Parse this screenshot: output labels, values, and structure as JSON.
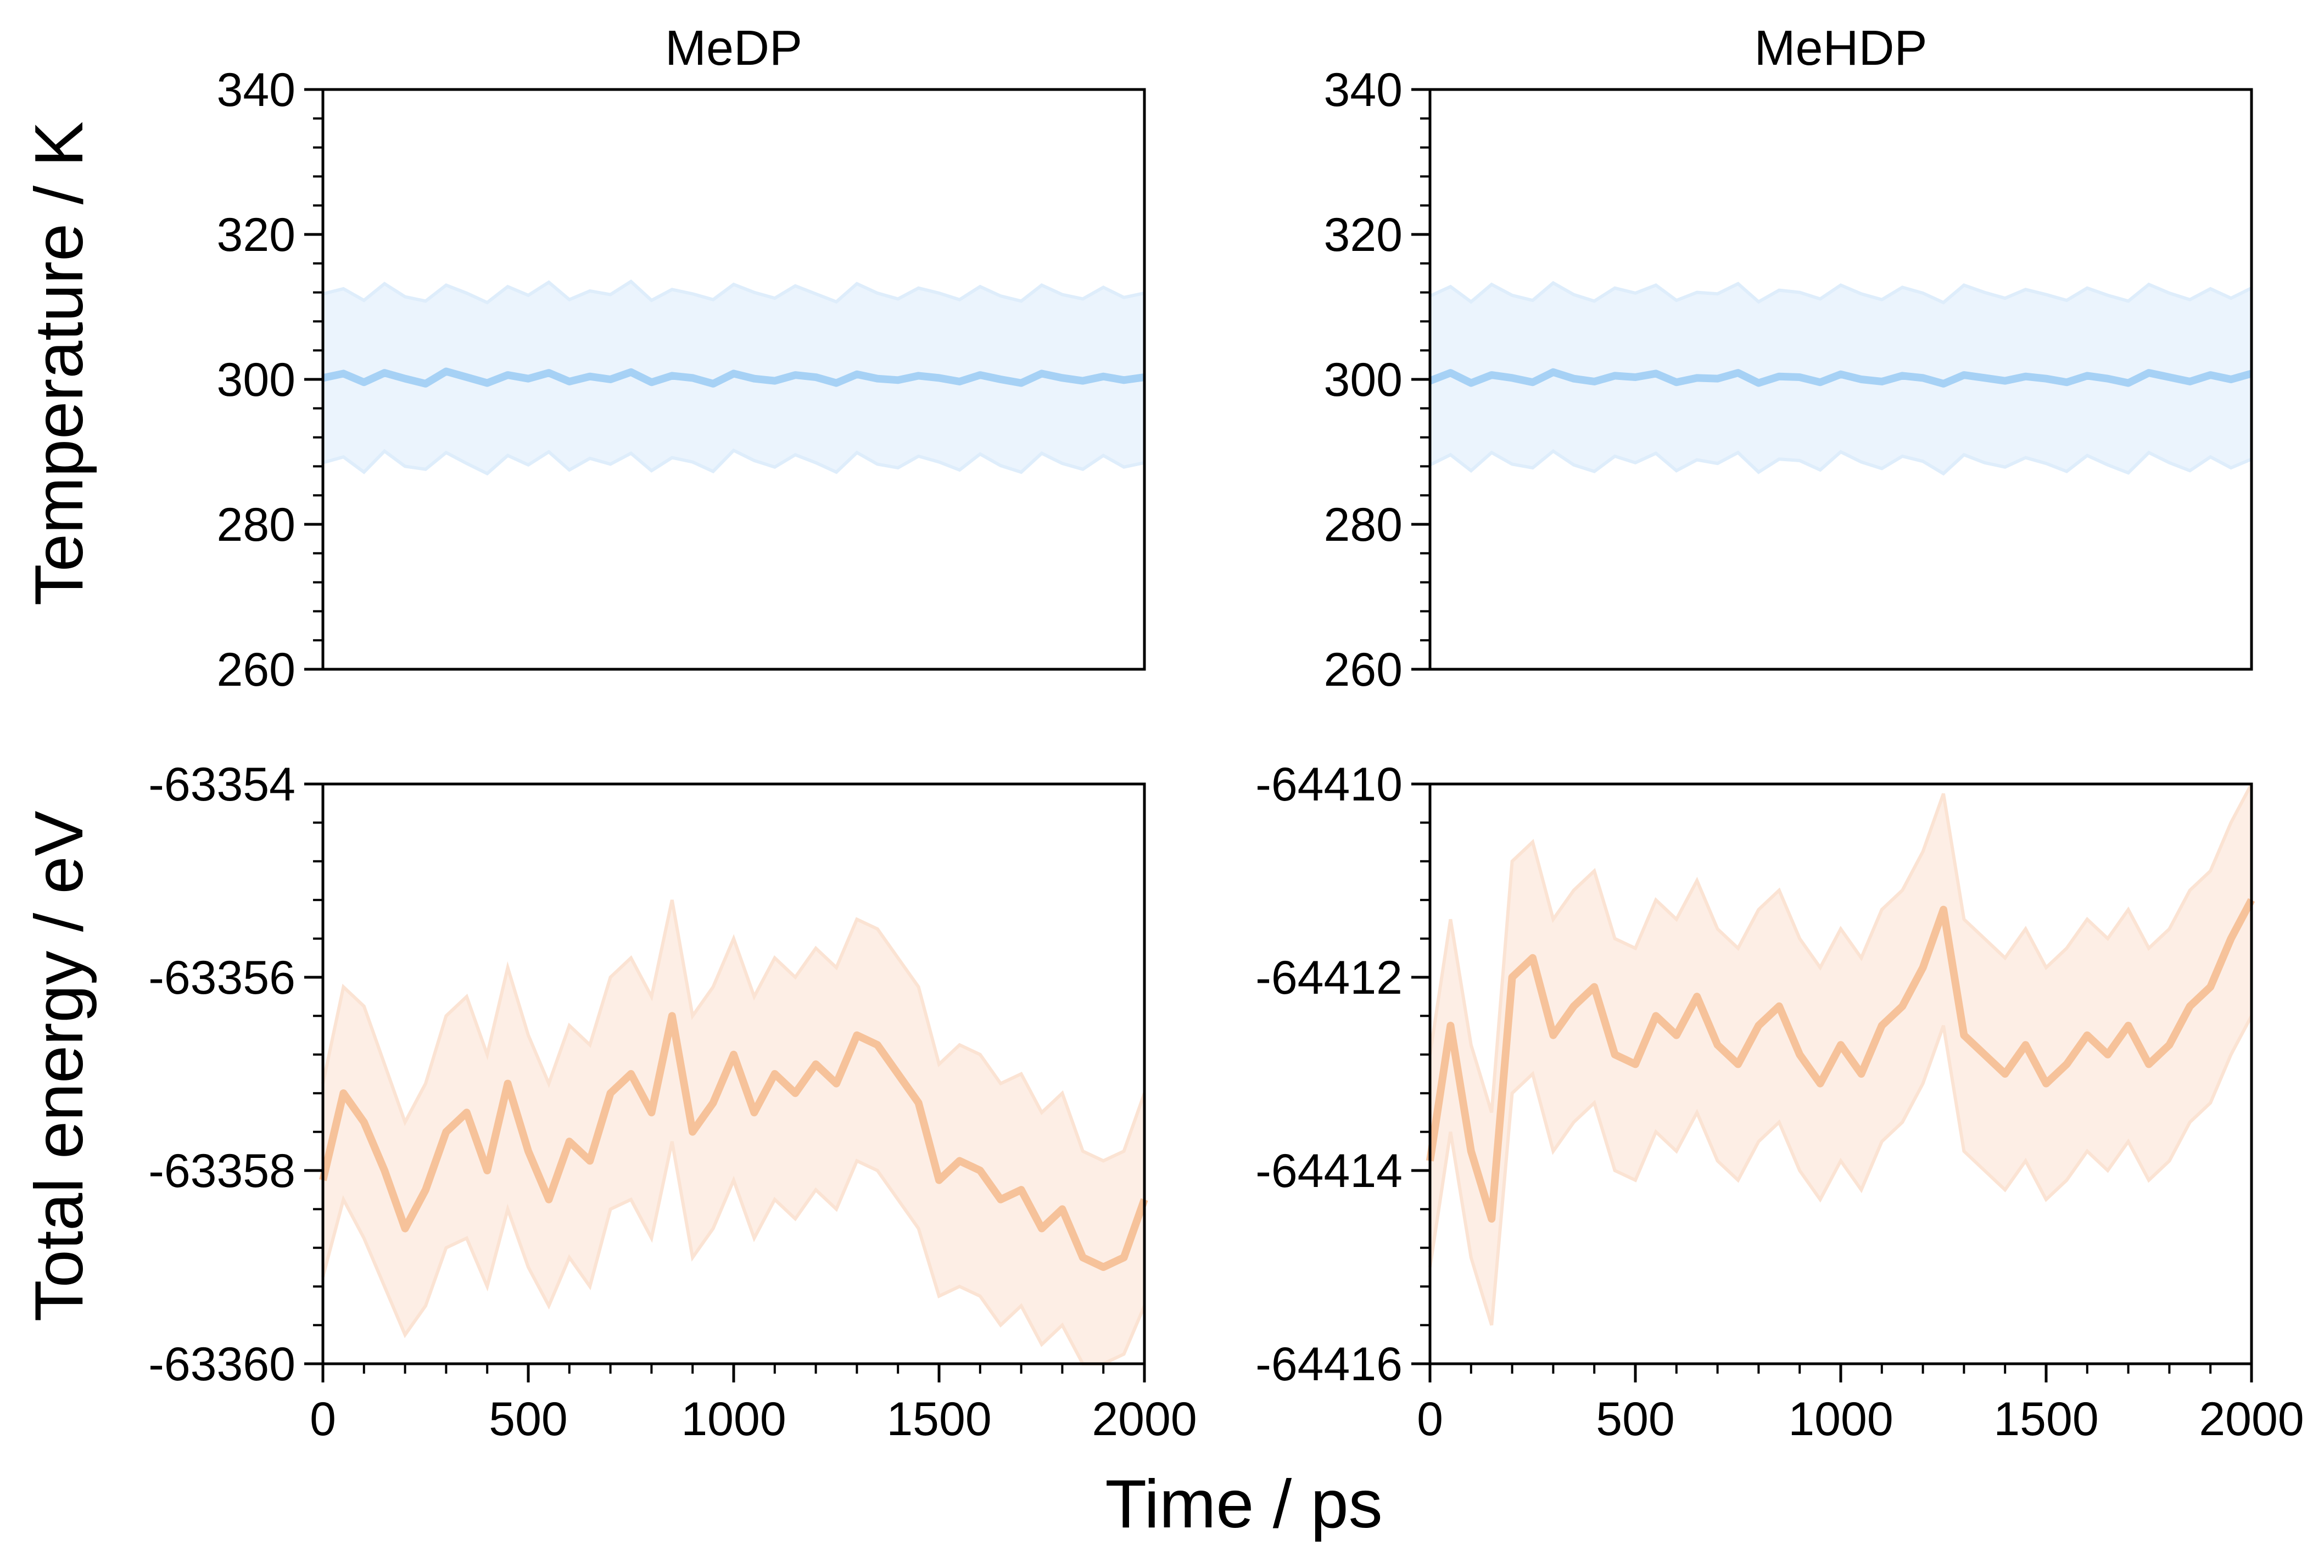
{
  "figure": {
    "xlabel": "Time / ps",
    "colors": {
      "temperature_line": "#a6d1f5",
      "temperature_band": "#deedfb",
      "energy_line": "#f6c29a",
      "energy_band": "#fbe3d3"
    }
  },
  "chart_data": [
    {
      "id": "temp-medp",
      "type": "line",
      "title": "MeDP",
      "xlabel": "",
      "ylabel": "Temperature / K",
      "xlim": [
        0,
        2000
      ],
      "ylim": [
        260,
        340
      ],
      "xticks": [
        0,
        500,
        1000,
        1500,
        2000
      ],
      "yticks": [
        260,
        280,
        300,
        320,
        340
      ],
      "ytick_labels": [
        "260",
        "280",
        "300",
        "320",
        "340"
      ],
      "show_xticklabels": false,
      "color": "#a6d1f5",
      "band_color": "#deedfb",
      "series": [
        {
          "x": [
            0,
            50,
            100,
            150,
            200,
            250,
            300,
            350,
            400,
            450,
            500,
            550,
            600,
            650,
            700,
            750,
            800,
            850,
            900,
            950,
            1000,
            1050,
            1100,
            1150,
            1200,
            1250,
            1300,
            1350,
            1400,
            1450,
            1500,
            1550,
            1600,
            1650,
            1700,
            1750,
            1800,
            1850,
            1900,
            1950,
            2000
          ],
          "mean": [
            300.2,
            300.8,
            299.6,
            300.9,
            300.1,
            299.4,
            301.1,
            300.3,
            299.5,
            300.6,
            300.1,
            300.9,
            299.7,
            300.4,
            300.0,
            301.0,
            299.6,
            300.5,
            300.2,
            299.4,
            300.8,
            300.1,
            299.8,
            300.6,
            300.3,
            299.5,
            300.7,
            300.1,
            299.9,
            300.5,
            300.2,
            299.7,
            300.6,
            300.0,
            299.5,
            300.8,
            300.2,
            299.8,
            300.4,
            299.9,
            300.3
          ],
          "lower": [
            288.5,
            289.3,
            287.2,
            290.1,
            288.0,
            287.6,
            289.9,
            288.4,
            287.0,
            289.5,
            288.2,
            290.0,
            287.5,
            289.1,
            288.3,
            289.8,
            287.4,
            289.2,
            288.6,
            287.3,
            290.2,
            288.8,
            287.9,
            289.6,
            288.5,
            287.2,
            289.9,
            288.3,
            287.8,
            289.4,
            288.6,
            287.5,
            289.7,
            288.1,
            287.2,
            289.8,
            288.4,
            287.6,
            289.5,
            287.9,
            288.5
          ],
          "upper": [
            311.8,
            312.5,
            310.9,
            313.2,
            311.4,
            310.8,
            313.0,
            311.9,
            310.6,
            312.8,
            311.6,
            313.4,
            311.0,
            312.2,
            311.7,
            313.5,
            310.9,
            312.4,
            311.8,
            311.0,
            313.1,
            312.0,
            311.2,
            312.9,
            311.8,
            310.7,
            313.2,
            311.9,
            311.1,
            312.6,
            311.9,
            311.0,
            312.8,
            311.5,
            310.8,
            313.0,
            311.7,
            311.1,
            312.7,
            311.3,
            311.9
          ]
        }
      ]
    },
    {
      "id": "temp-mehdp",
      "type": "line",
      "title": "MeHDP",
      "xlabel": "",
      "ylabel": "",
      "xlim": [
        0,
        2000
      ],
      "ylim": [
        260,
        340
      ],
      "xticks": [
        0,
        500,
        1000,
        1500,
        2000
      ],
      "yticks": [
        260,
        280,
        300,
        320,
        340
      ],
      "ytick_labels": [
        "260",
        "280",
        "300",
        "320",
        "340"
      ],
      "show_xticklabels": false,
      "color": "#a6d1f5",
      "band_color": "#deedfb",
      "series": [
        {
          "x": [
            0,
            50,
            100,
            150,
            200,
            250,
            300,
            350,
            400,
            450,
            500,
            550,
            600,
            650,
            700,
            750,
            800,
            850,
            900,
            950,
            1000,
            1050,
            1100,
            1150,
            1200,
            1250,
            1300,
            1350,
            1400,
            1450,
            1500,
            1550,
            1600,
            1650,
            1700,
            1750,
            1800,
            1850,
            1900,
            1950,
            2000
          ],
          "mean": [
            299.8,
            300.9,
            299.5,
            300.6,
            300.2,
            299.6,
            301.0,
            300.1,
            299.7,
            300.5,
            300.3,
            300.8,
            299.6,
            300.2,
            300.1,
            300.9,
            299.5,
            300.4,
            300.3,
            299.6,
            300.7,
            300.0,
            299.7,
            300.5,
            300.2,
            299.4,
            300.6,
            300.2,
            299.8,
            300.4,
            300.1,
            299.6,
            300.5,
            300.1,
            299.5,
            300.9,
            300.3,
            299.7,
            300.6,
            300.0,
            300.8
          ],
          "lower": [
            288.2,
            289.6,
            287.4,
            289.9,
            288.3,
            287.8,
            290.1,
            288.2,
            287.3,
            289.4,
            288.5,
            289.8,
            287.4,
            288.9,
            288.4,
            289.9,
            287.2,
            289.0,
            288.8,
            287.5,
            290.0,
            288.6,
            287.7,
            289.4,
            288.7,
            287.0,
            289.6,
            288.5,
            287.9,
            289.2,
            288.4,
            287.3,
            289.5,
            288.2,
            287.1,
            289.9,
            288.5,
            287.4,
            289.3,
            287.8,
            289.0
          ],
          "upper": [
            311.5,
            312.8,
            310.7,
            313.1,
            311.6,
            310.9,
            313.3,
            311.7,
            310.8,
            312.6,
            311.9,
            313.0,
            310.9,
            312.0,
            311.8,
            313.2,
            310.7,
            312.3,
            312.0,
            311.1,
            313.0,
            311.8,
            311.0,
            312.7,
            311.9,
            310.6,
            313.0,
            312.0,
            311.2,
            312.4,
            311.7,
            310.9,
            312.6,
            311.6,
            310.8,
            313.1,
            311.9,
            311.0,
            312.5,
            311.2,
            312.6
          ]
        }
      ]
    },
    {
      "id": "energy-medp",
      "type": "line",
      "title": "",
      "xlabel": "",
      "ylabel": "Total energy / eV",
      "xlim": [
        0,
        2000
      ],
      "ylim": [
        -63360,
        -63354
      ],
      "xticks": [
        0,
        500,
        1000,
        1500,
        2000
      ],
      "xtick_labels": [
        "0",
        "500",
        "1000",
        "1500",
        "2000"
      ],
      "yticks": [
        -63360,
        -63358,
        -63356,
        -63354
      ],
      "ytick_labels": [
        "-63360",
        "-63358",
        "-63356",
        "-63354"
      ],
      "show_xticklabels": true,
      "color": "#f6c29a",
      "band_color": "#fbe3d3",
      "series": [
        {
          "x": [
            0,
            50,
            100,
            150,
            200,
            250,
            300,
            350,
            400,
            450,
            500,
            550,
            600,
            650,
            700,
            750,
            800,
            850,
            900,
            950,
            1000,
            1050,
            1100,
            1150,
            1200,
            1250,
            1300,
            1350,
            1400,
            1450,
            1500,
            1550,
            1600,
            1650,
            1700,
            1750,
            1800,
            1850,
            1900,
            1950,
            2000
          ],
          "mean": [
            -63358.1,
            -63357.2,
            -63357.5,
            -63358.0,
            -63358.6,
            -63358.2,
            -63357.6,
            -63357.4,
            -63358.0,
            -63357.1,
            -63357.8,
            -63358.3,
            -63357.7,
            -63357.9,
            -63357.2,
            -63357.0,
            -63357.4,
            -63356.4,
            -63357.6,
            -63357.3,
            -63356.8,
            -63357.4,
            -63357.0,
            -63357.2,
            -63356.9,
            -63357.1,
            -63356.6,
            -63356.7,
            -63357.0,
            -63357.3,
            -63358.1,
            -63357.9,
            -63358.0,
            -63358.3,
            -63358.2,
            -63358.6,
            -63358.4,
            -63358.9,
            -63359.0,
            -63358.9,
            -63358.3
          ],
          "lower": [
            -63359.1,
            -63358.3,
            -63358.7,
            -63359.2,
            -63359.7,
            -63359.4,
            -63358.8,
            -63358.7,
            -63359.2,
            -63358.4,
            -63359.0,
            -63359.4,
            -63358.9,
            -63359.2,
            -63358.4,
            -63358.3,
            -63358.7,
            -63357.7,
            -63358.9,
            -63358.6,
            -63358.1,
            -63358.7,
            -63358.3,
            -63358.5,
            -63358.2,
            -63358.4,
            -63357.9,
            -63358.0,
            -63358.3,
            -63358.6,
            -63359.3,
            -63359.2,
            -63359.3,
            -63359.6,
            -63359.4,
            -63359.8,
            -63359.6,
            -63360.0,
            -63360.0,
            -63359.9,
            -63359.4
          ],
          "upper": [
            -63357.1,
            -63356.1,
            -63356.3,
            -63356.9,
            -63357.5,
            -63357.1,
            -63356.4,
            -63356.2,
            -63356.8,
            -63355.9,
            -63356.6,
            -63357.1,
            -63356.5,
            -63356.7,
            -63356.0,
            -63355.8,
            -63356.2,
            -63355.2,
            -63356.4,
            -63356.1,
            -63355.6,
            -63356.2,
            -63355.8,
            -63356.0,
            -63355.7,
            -63355.9,
            -63355.4,
            -63355.5,
            -63355.8,
            -63356.1,
            -63356.9,
            -63356.7,
            -63356.8,
            -63357.1,
            -63357.0,
            -63357.4,
            -63357.2,
            -63357.8,
            -63357.9,
            -63357.8,
            -63357.2
          ]
        }
      ]
    },
    {
      "id": "energy-mehdp",
      "type": "line",
      "title": "",
      "xlabel": "",
      "ylabel": "",
      "xlim": [
        0,
        2000
      ],
      "ylim": [
        -64416,
        -64410
      ],
      "xticks": [
        0,
        500,
        1000,
        1500,
        2000
      ],
      "xtick_labels": [
        "0",
        "500",
        "1000",
        "1500",
        "2000"
      ],
      "yticks": [
        -64416,
        -64414,
        -64412,
        -64410
      ],
      "ytick_labels": [
        "-64416",
        "-64414",
        "-64412",
        "-64410"
      ],
      "show_xticklabels": true,
      "color": "#f6c29a",
      "band_color": "#fbe3d3",
      "series": [
        {
          "x": [
            0,
            50,
            100,
            150,
            200,
            250,
            300,
            350,
            400,
            450,
            500,
            550,
            600,
            650,
            700,
            750,
            800,
            850,
            900,
            950,
            1000,
            1050,
            1100,
            1150,
            1200,
            1250,
            1300,
            1350,
            1400,
            1450,
            1500,
            1550,
            1600,
            1650,
            1700,
            1750,
            1800,
            1850,
            1900,
            1950,
            2000
          ],
          "mean": [
            -64413.9,
            -64412.5,
            -64413.8,
            -64414.5,
            -64412.0,
            -64411.8,
            -64412.6,
            -64412.3,
            -64412.1,
            -64412.8,
            -64412.9,
            -64412.4,
            -64412.6,
            -64412.2,
            -64412.7,
            -64412.9,
            -64412.5,
            -64412.3,
            -64412.8,
            -64413.1,
            -64412.7,
            -64413.0,
            -64412.5,
            -64412.3,
            -64411.9,
            -64411.3,
            -64412.6,
            -64412.8,
            -64413.0,
            -64412.7,
            -64413.1,
            -64412.9,
            -64412.6,
            -64412.8,
            -64412.5,
            -64412.9,
            -64412.7,
            -64412.3,
            -64412.1,
            -64411.6,
            -64411.2
          ],
          "lower": [
            -64415.0,
            -64413.6,
            -64414.9,
            -64415.6,
            -64413.2,
            -64413.0,
            -64413.8,
            -64413.5,
            -64413.3,
            -64414.0,
            -64414.1,
            -64413.6,
            -64413.8,
            -64413.4,
            -64413.9,
            -64414.1,
            -64413.7,
            -64413.5,
            -64414.0,
            -64414.3,
            -64413.9,
            -64414.2,
            -64413.7,
            -64413.5,
            -64413.1,
            -64412.5,
            -64413.8,
            -64414.0,
            -64414.2,
            -64413.9,
            -64414.3,
            -64414.1,
            -64413.8,
            -64414.0,
            -64413.7,
            -64414.1,
            -64413.9,
            -64413.5,
            -64413.3,
            -64412.8,
            -64412.4
          ],
          "upper": [
            -64412.8,
            -64411.4,
            -64412.7,
            -64413.4,
            -64410.8,
            -64410.6,
            -64411.4,
            -64411.1,
            -64410.9,
            -64411.6,
            -64411.7,
            -64411.2,
            -64411.4,
            -64411.0,
            -64411.5,
            -64411.7,
            -64411.3,
            -64411.1,
            -64411.6,
            -64411.9,
            -64411.5,
            -64411.8,
            -64411.3,
            -64411.1,
            -64410.7,
            -64410.1,
            -64411.4,
            -64411.6,
            -64411.8,
            -64411.5,
            -64411.9,
            -64411.7,
            -64411.4,
            -64411.6,
            -64411.3,
            -64411.7,
            -64411.5,
            -64411.1,
            -64410.9,
            -64410.4,
            -64410.0
          ]
        }
      ]
    }
  ]
}
